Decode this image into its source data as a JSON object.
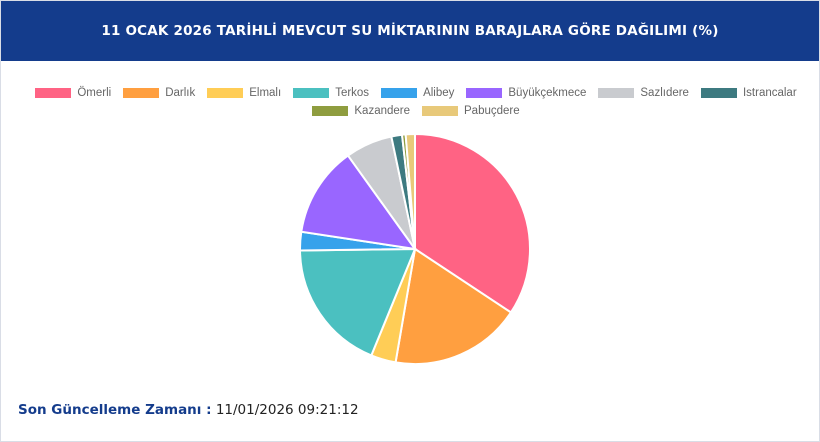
{
  "header": {
    "title": "11 OCAK 2026 TARİHLİ MEVCUT SU MİKTARININ BARAJLARA GÖRE DAĞILIMI (%)"
  },
  "footer": {
    "label": "Son Güncelleme Zamanı :",
    "value": "11/01/2026 09:21:12"
  },
  "chart_data": {
    "type": "pie",
    "title": "11 OCAK 2026 TARİHLİ MEVCUT SU MİKTARININ BARAJLARA GÖRE DAĞILIMI (%)",
    "legend_position": "top",
    "categories": [
      "Ömerli",
      "Darlık",
      "Elmalı",
      "Terkos",
      "Alibey",
      "Büyükçekmece",
      "Sazlıdere",
      "Istrancalar",
      "Kazandere",
      "Pabuçdere"
    ],
    "values": [
      34.3,
      18.4,
      3.5,
      18.6,
      2.6,
      12.7,
      6.6,
      1.5,
      0.5,
      1.3
    ],
    "colors": [
      "#ff6384",
      "#ff9f40",
      "#ffcd56",
      "#4bc0c0",
      "#36a2eb",
      "#9966ff",
      "#c9cbcf",
      "#3d7a80",
      "#8f9d3f",
      "#e8c97a"
    ]
  }
}
